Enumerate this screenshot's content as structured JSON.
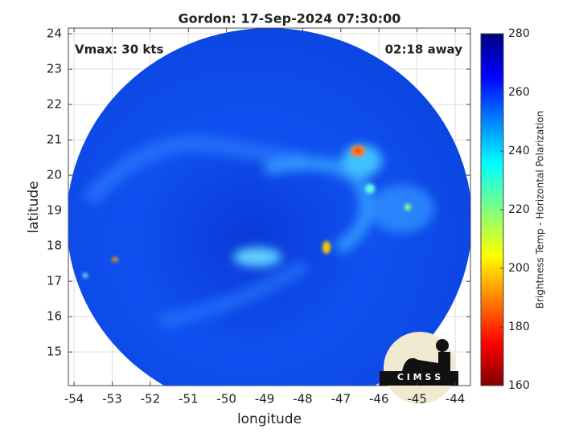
{
  "title": "Gordon: 17-Sep-2024 07:30:00",
  "annotations": {
    "vmax": "Vmax: 30 kts",
    "time_away": "02:18 away"
  },
  "map": {
    "xlabel": "longitude",
    "ylabel": "latitude",
    "xlim": [
      -54.15,
      -43.6
    ],
    "ylim": [
      14.05,
      24.16
    ],
    "xticks": [
      -54,
      -53,
      -52,
      -51,
      -50,
      -49,
      -48,
      -47,
      -46,
      -45,
      -44
    ],
    "yticks": [
      15,
      16,
      17,
      18,
      19,
      20,
      21,
      22,
      23,
      24
    ],
    "grid": true
  },
  "colorbar": {
    "label": "Brightness Temp - Horizontal Polarization",
    "lim": [
      160,
      280
    ],
    "ticks": [
      160,
      180,
      200,
      220,
      240,
      260,
      280
    ]
  },
  "logo": "C I M S S"
}
